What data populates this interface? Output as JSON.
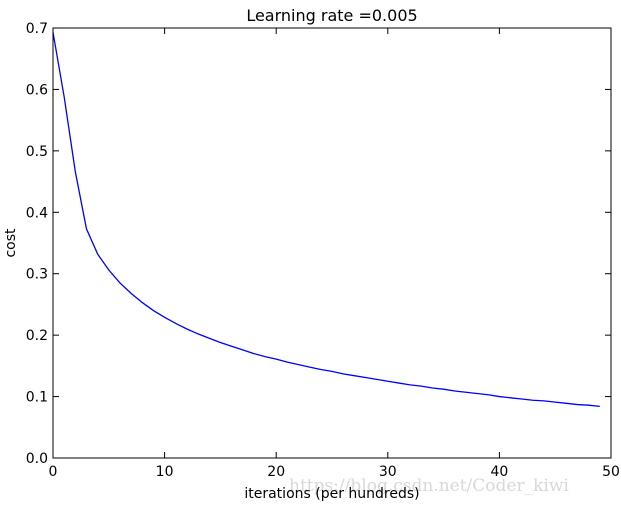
{
  "chart_data": {
    "type": "line",
    "title": "Learning rate =0.005",
    "xlabel": "iterations (per hundreds)",
    "ylabel": "cost",
    "xlim": [
      0,
      50
    ],
    "ylim": [
      0.0,
      0.7
    ],
    "xticks": [
      "0",
      "10",
      "20",
      "30",
      "40",
      "50"
    ],
    "yticks": [
      "0.0",
      "0.1",
      "0.2",
      "0.3",
      "0.4",
      "0.5",
      "0.6",
      "0.7"
    ],
    "grid": false,
    "series": [
      {
        "color": "#0000ff",
        "x": [
          0,
          1,
          2,
          3,
          4,
          5,
          6,
          7,
          8,
          9,
          10,
          11,
          12,
          13,
          14,
          15,
          16,
          17,
          18,
          19,
          20,
          21,
          22,
          23,
          24,
          25,
          26,
          27,
          28,
          29,
          30,
          31,
          32,
          33,
          34,
          35,
          36,
          37,
          38,
          39,
          40,
          41,
          42,
          43,
          44,
          45,
          46,
          47,
          48,
          49
        ],
        "values": [
          0.693,
          0.588,
          0.466,
          0.373,
          0.332,
          0.306,
          0.285,
          0.268,
          0.253,
          0.24,
          0.229,
          0.219,
          0.21,
          0.202,
          0.195,
          0.188,
          0.182,
          0.176,
          0.17,
          0.165,
          0.161,
          0.156,
          0.152,
          0.148,
          0.144,
          0.141,
          0.137,
          0.134,
          0.131,
          0.128,
          0.125,
          0.122,
          0.119,
          0.117,
          0.114,
          0.112,
          0.109,
          0.107,
          0.105,
          0.103,
          0.1,
          0.098,
          0.096,
          0.094,
          0.093,
          0.091,
          0.089,
          0.087,
          0.086,
          0.084
        ]
      }
    ]
  },
  "watermark": "https://blog.csdn.net/Coder_kiwi"
}
